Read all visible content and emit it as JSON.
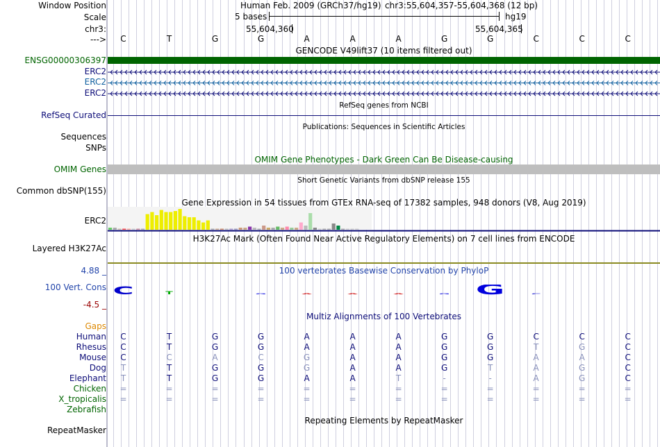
{
  "window_position_label": "Window Position",
  "scale_label": "Scale",
  "chr_label": "chr3:",
  "arrow_label": "--->",
  "header": {
    "assembly": "Human Feb. 2009 (GRCh37/hg19)",
    "position": "chr3:55,604,357-55,604,368 (12 bp)",
    "scale_text": "5 bases",
    "scale_db": "hg19",
    "coord1": "55,604,360",
    "coord2": "55,604,365"
  },
  "bases": [
    "C",
    "T",
    "G",
    "G",
    "A",
    "A",
    "A",
    "G",
    "G",
    "C",
    "C",
    "C"
  ],
  "gencode": {
    "title": "GENCODE V49lift37 (10 items filtered out)",
    "tracks": [
      {
        "label": "ENSG00000306397",
        "color": "#006400"
      },
      {
        "label": "ERC2",
        "color": "#0c0c78"
      },
      {
        "label": "ERC2",
        "color": "#1060a0"
      },
      {
        "label": "ERC2",
        "color": "#0c0c78"
      }
    ]
  },
  "refseq": {
    "title": "RefSeq genes from NCBI",
    "label": "RefSeq Curated"
  },
  "publications": {
    "title": "Publications: Sequences in Scientific Articles",
    "labels": [
      "Sequences",
      "SNPs"
    ]
  },
  "omim": {
    "title": "OMIM Gene Phenotypes - Dark Green Can Be Disease-causing",
    "label": "OMIM Genes"
  },
  "dbsnp": {
    "title": "Short Genetic Variants from dbSNP release 155",
    "label": "Common dbSNP(155)"
  },
  "gtex": {
    "title": "Gene Expression in 54 tissues from GTEx RNA-seq of 17382 samples, 948 donors (V8, Aug 2019)",
    "label": "ERC2",
    "values": [
      0.1,
      0.1,
      0.05,
      0.05,
      0.05,
      0.05,
      0.05,
      0.05,
      0.75,
      0.85,
      0.7,
      0.95,
      0.85,
      0.85,
      0.9,
      1.0,
      0.65,
      0.6,
      0.6,
      0.45,
      0.35,
      0.45,
      0.05,
      0.05,
      0.05,
      0.05,
      0.05,
      0.05,
      0.1,
      0.1,
      0.15,
      0.1,
      0.05,
      0.2,
      0.1,
      0.1,
      0.15,
      0.1,
      0.15,
      0.1,
      0.1,
      0.35,
      0.2,
      0.8,
      0.1,
      0.05,
      0.05,
      0.05,
      0.3,
      0.2,
      0.05,
      0.05,
      0.05,
      0.05
    ],
    "colors": [
      "#66cc66",
      "#aaaaaa",
      "#ccbbaa",
      "#ff4444",
      "#ffaa99",
      "#cccccc",
      "#cc8899",
      "#aaaaaa",
      "#eeee00",
      "#eeee00",
      "#eeee00",
      "#eeee00",
      "#eeee00",
      "#eeee00",
      "#eeee00",
      "#eeee00",
      "#eeee00",
      "#eeee00",
      "#eeee00",
      "#eeee00",
      "#eeee00",
      "#eeee00",
      "#aaaaaa",
      "#ccaa88",
      "#cc8866",
      "#bbbbbb",
      "#aa99cc",
      "#9999bb",
      "#cc9977",
      "#ccaa88",
      "#8833aa",
      "#bbbbbb",
      "#aaaaaa",
      "#cc9988",
      "#ccaa66",
      "#aaaaaa",
      "#66bb66",
      "#ccaa88",
      "#ff88aa",
      "#99cc99",
      "#ccaa88",
      "#ffaacc",
      "#bbbbbb",
      "#aaddaa",
      "#888888",
      "#cccccc",
      "#aaaaaa",
      "#aaaaaa",
      "#888888",
      "#008844",
      "#aaaaaa",
      "#cccccc",
      "#cccccc",
      "#cccccc"
    ]
  },
  "h3k27ac": {
    "title": "H3K27Ac Mark (Often Found Near Active Regulatory Elements) on 7 cell lines from ENCODE",
    "label": "Layered H3K27Ac"
  },
  "conservation": {
    "title": "100 vertebrates Basewise Conservation by PhyloP",
    "label": "100 Vert. Cons",
    "max": "4.88 _",
    "min": "-4.5 _",
    "values": [
      3.9,
      1.4,
      0.0,
      -1.2,
      -1.1,
      -0.8,
      -1.3,
      -0.6,
      4.88,
      -1.4,
      0.0,
      0.0
    ]
  },
  "multiz": {
    "title": "Multiz Alignments of 100 Vertebrates",
    "gaps_label": "Gaps",
    "species": [
      {
        "name": "Human",
        "bases": [
          "C",
          "T",
          "G",
          "G",
          "A",
          "A",
          "A",
          "G",
          "G",
          "C",
          "C",
          "C"
        ],
        "faded": [
          0,
          0,
          0,
          0,
          0,
          0,
          0,
          0,
          0,
          0,
          0,
          0
        ]
      },
      {
        "name": "Rhesus",
        "bases": [
          "C",
          "T",
          "G",
          "G",
          "A",
          "A",
          "A",
          "G",
          "G",
          "T",
          "G",
          "C"
        ],
        "faded": [
          0,
          0,
          0,
          0,
          0,
          0,
          0,
          0,
          0,
          1,
          1,
          0
        ]
      },
      {
        "name": "Mouse",
        "bases": [
          "C",
          "C",
          "A",
          "C",
          "G",
          "A",
          "A",
          "G",
          "G",
          "A",
          "A",
          "C"
        ],
        "faded": [
          0,
          1,
          1,
          1,
          1,
          0,
          0,
          0,
          0,
          1,
          1,
          0
        ]
      },
      {
        "name": "Dog",
        "bases": [
          "T",
          "T",
          "G",
          "G",
          "G",
          "A",
          "A",
          "G",
          "T",
          "A",
          "G",
          "C"
        ],
        "faded": [
          1,
          0,
          0,
          0,
          1,
          0,
          0,
          0,
          1,
          1,
          1,
          0
        ]
      },
      {
        "name": "Elephant",
        "bases": [
          "T",
          "T",
          "G",
          "G",
          "A",
          "A",
          "T",
          "-",
          "-",
          "A",
          "G",
          "C"
        ],
        "faded": [
          1,
          0,
          0,
          0,
          0,
          0,
          1,
          1,
          1,
          1,
          1,
          0
        ]
      },
      {
        "name": "Chicken",
        "bases": [
          "=",
          "=",
          "=",
          "=",
          "=",
          "=",
          "=",
          "=",
          "=",
          "=",
          "=",
          "="
        ],
        "faded": [
          1,
          1,
          1,
          1,
          1,
          1,
          1,
          1,
          1,
          1,
          1,
          1
        ]
      },
      {
        "name": "X_tropicalis",
        "bases": [
          "=",
          "=",
          "=",
          "=",
          "=",
          "=",
          "=",
          "=",
          "=",
          "=",
          "=",
          "="
        ],
        "faded": [
          1,
          1,
          1,
          1,
          1,
          1,
          1,
          1,
          1,
          1,
          1,
          1
        ]
      },
      {
        "name": "Zebrafish",
        "bases": [
          "",
          "",
          "",
          "",
          "",
          "",
          "",
          "",
          "",
          "",
          "",
          ""
        ],
        "faded": [
          1,
          1,
          1,
          1,
          1,
          1,
          1,
          1,
          1,
          1,
          1,
          1
        ]
      }
    ]
  },
  "repeatmasker": {
    "title": "Repeating Elements by RepeatMasker",
    "label": "RepeatMasker"
  },
  "colors": {
    "navy": "#0c0c78",
    "gencode_green": "#006400",
    "omim_label": "#006400",
    "gap_orange": "#dd8800",
    "cons_blue": "#2244aa",
    "cons_red": "#990000"
  }
}
